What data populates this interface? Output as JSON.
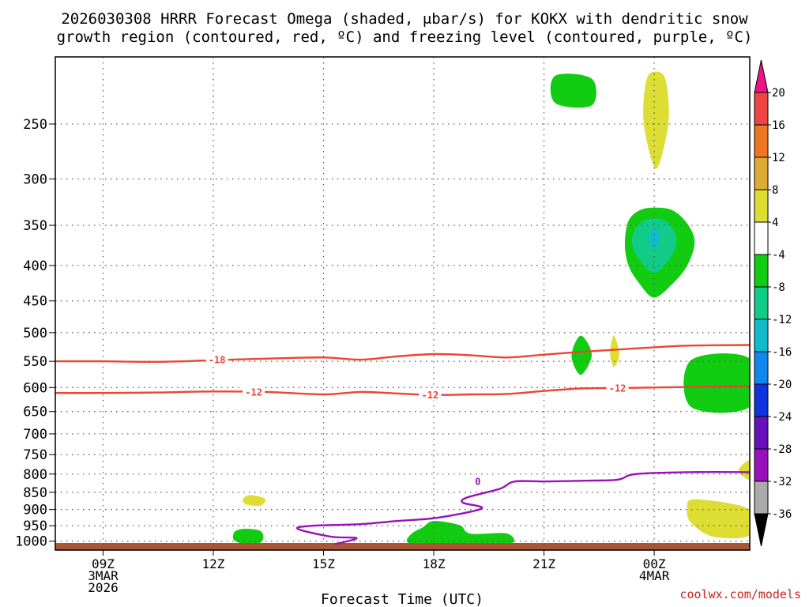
{
  "chart_data": {
    "type": "contour",
    "title_line1": "2026030308 HRRR Forecast Omega (shaded, μbar/s) for KOKX with dendritic snow",
    "title_line2": "growth region (contoured, red, ºC) and freezing level (contoured, purple, ºC)",
    "xlabel": "Forecast Time (UTC)",
    "credit": "coolwx.com/models",
    "x_domain_hours": [
      7.7,
      26.6
    ],
    "x_ticks": [
      {
        "hour": 9,
        "lines": [
          "09Z",
          "3MAR",
          "2026"
        ]
      },
      {
        "hour": 12,
        "lines": [
          "12Z"
        ]
      },
      {
        "hour": 15,
        "lines": [
          "15Z"
        ]
      },
      {
        "hour": 18,
        "lines": [
          "18Z"
        ]
      },
      {
        "hour": 21,
        "lines": [
          "21Z"
        ]
      },
      {
        "hour": 24,
        "lines": [
          "00Z",
          "4MAR"
        ]
      }
    ],
    "y_scale": "log-pressure",
    "y_domain_hpa": [
      1030,
      200
    ],
    "y_ticks": [
      250,
      300,
      350,
      400,
      450,
      500,
      550,
      600,
      650,
      700,
      750,
      800,
      850,
      900,
      950,
      1000
    ],
    "contours": [
      {
        "level": -18,
        "color": "#ee4433",
        "label": "-18",
        "points": [
          [
            7.7,
            550
          ],
          [
            9,
            550
          ],
          [
            10.5,
            551
          ],
          [
            12,
            548
          ],
          [
            13.5,
            545
          ],
          [
            15,
            543
          ],
          [
            16,
            547
          ],
          [
            17,
            541
          ],
          [
            18,
            537
          ],
          [
            19,
            539
          ],
          [
            20,
            543
          ],
          [
            21,
            538
          ],
          [
            22,
            533
          ],
          [
            23,
            529
          ],
          [
            24,
            525
          ],
          [
            25,
            522
          ],
          [
            26.6,
            521
          ]
        ],
        "labels": [
          [
            12.1,
            547
          ]
        ]
      },
      {
        "level": -12,
        "color": "#ee4433",
        "label": "-12",
        "points": [
          [
            7.7,
            611
          ],
          [
            9,
            611
          ],
          [
            10.5,
            610
          ],
          [
            12,
            608
          ],
          [
            13.5,
            609
          ],
          [
            15,
            614
          ],
          [
            16,
            609
          ],
          [
            17,
            612
          ],
          [
            18,
            615
          ],
          [
            19,
            614
          ],
          [
            20,
            613
          ],
          [
            21,
            607
          ],
          [
            22,
            602
          ],
          [
            23,
            601
          ],
          [
            24,
            600
          ],
          [
            25,
            599
          ],
          [
            26.6,
            597
          ]
        ],
        "labels": [
          [
            13.1,
            609
          ],
          [
            17.9,
            615
          ],
          [
            23.0,
            601
          ]
        ]
      },
      {
        "level": 0,
        "color": "#9911bb",
        "label": "0",
        "points": [
          [
            15.3,
            1010
          ],
          [
            15.9,
            990
          ],
          [
            15.2,
            985
          ],
          [
            14.3,
            960
          ],
          [
            14.7,
            950
          ],
          [
            16,
            945
          ],
          [
            17,
            935
          ],
          [
            18.1,
            925
          ],
          [
            19.3,
            897
          ],
          [
            18.8,
            880
          ],
          [
            18.9,
            865
          ],
          [
            19.8,
            840
          ],
          [
            20.2,
            820
          ],
          [
            21,
            820
          ],
          [
            22,
            818
          ],
          [
            23,
            815
          ],
          [
            23.5,
            800
          ],
          [
            25,
            795
          ],
          [
            26.6,
            795
          ]
        ],
        "labels": [
          [
            19.2,
            820
          ]
        ]
      }
    ],
    "shaded_regions": [
      {
        "range": "-8 to -4",
        "color": "#11cc11",
        "points": [
          [
            21.3,
            213
          ],
          [
            22.3,
            215
          ],
          [
            22.3,
            235
          ],
          [
            21.3,
            233
          ]
        ]
      },
      {
        "range": "4 to 8",
        "color": "#dddd33",
        "points": [
          [
            23.8,
            215
          ],
          [
            24.05,
            210
          ],
          [
            24.3,
            215
          ],
          [
            24.4,
            240
          ],
          [
            24.3,
            265
          ],
          [
            24.05,
            290
          ],
          [
            23.8,
            265
          ],
          [
            23.7,
            240
          ]
        ]
      },
      {
        "range": "-8 to -4",
        "color": "#11cc11",
        "points": [
          [
            24,
            330
          ],
          [
            24.5,
            333
          ],
          [
            24.9,
            348
          ],
          [
            25.1,
            370
          ],
          [
            24.9,
            400
          ],
          [
            24.5,
            425
          ],
          [
            24,
            445
          ],
          [
            23.6,
            425
          ],
          [
            23.3,
            400
          ],
          [
            23.2,
            372
          ],
          [
            23.3,
            345
          ],
          [
            23.6,
            333
          ]
        ]
      },
      {
        "range": "-12 to -8",
        "color": "#11cc88",
        "points": [
          [
            24,
            342
          ],
          [
            24.4,
            348
          ],
          [
            24.6,
            365
          ],
          [
            24.5,
            385
          ],
          [
            24,
            410
          ],
          [
            23.5,
            385
          ],
          [
            23.4,
            365
          ],
          [
            23.6,
            348
          ]
        ]
      },
      {
        "range": "-16 to -12",
        "color": "#11bbcc",
        "points": [
          [
            24,
            352
          ],
          [
            24.15,
            365
          ],
          [
            24,
            378
          ],
          [
            23.85,
            365
          ]
        ]
      },
      {
        "range": "-8 to -4",
        "color": "#11cc11",
        "points": [
          [
            22.0,
            505
          ],
          [
            22.3,
            538
          ],
          [
            22.0,
            575
          ],
          [
            21.75,
            540
          ]
        ]
      },
      {
        "range": "4 to 8",
        "color": "#dddd33",
        "points": [
          [
            22.9,
            505
          ],
          [
            23.05,
            538
          ],
          [
            22.9,
            560
          ],
          [
            22.8,
            535
          ]
        ]
      },
      {
        "range": "-8 to -4",
        "color": "#11cc11",
        "points": [
          [
            25.0,
            548
          ],
          [
            26.6,
            545
          ],
          [
            26.6,
            640
          ],
          [
            25.0,
            640
          ]
        ]
      },
      {
        "range": "4 to 8",
        "color": "#dddd33",
        "points": [
          [
            26.6,
            765
          ],
          [
            26.3,
            790
          ],
          [
            26.6,
            815
          ]
        ]
      },
      {
        "range": "4 to 8",
        "color": "#dddd33",
        "points": [
          [
            13.0,
            858
          ],
          [
            13.4,
            868
          ],
          [
            13.3,
            888
          ],
          [
            12.9,
            885
          ],
          [
            12.8,
            870
          ]
        ]
      },
      {
        "range": "4 to 8",
        "color": "#dddd33",
        "points": [
          [
            25.1,
            870
          ],
          [
            26.6,
            900
          ],
          [
            26.6,
            980
          ],
          [
            25.6,
            985
          ],
          [
            25.0,
            940
          ],
          [
            24.9,
            900
          ]
        ]
      },
      {
        "range": "-8 to -4",
        "color": "#11cc11",
        "points": [
          [
            13.0,
            960
          ],
          [
            13.3,
            968
          ],
          [
            13.35,
            995
          ],
          [
            13.1,
            1013
          ],
          [
            12.6,
            1000
          ],
          [
            12.55,
            975
          ],
          [
            12.7,
            962
          ]
        ]
      },
      {
        "range": "-8 to -4",
        "color": "#11cc11",
        "points": [
          [
            18,
            935
          ],
          [
            18.7,
            948
          ],
          [
            19,
            975
          ],
          [
            20,
            975
          ],
          [
            20,
            1012
          ],
          [
            18,
            1015
          ],
          [
            17.3,
            1005
          ],
          [
            17.4,
            975
          ],
          [
            17.7,
            955
          ]
        ]
      }
    ],
    "ground_color": "#aa5533",
    "colorbar": {
      "colors": [
        "#ee1188",
        "#ee4444",
        "#ee7722",
        "#ddaa33",
        "#dddd33",
        "#ffffff",
        "#11cc11",
        "#11cc88",
        "#11bbcc",
        "#1188ee",
        "#1133dd",
        "#6611bb",
        "#9911bb",
        "#aaaaaa",
        "#000000"
      ],
      "labels": [
        "20",
        "16",
        "12",
        "8",
        "4",
        "-4",
        "-8",
        "-12",
        "-16",
        "-20",
        "-24",
        "-28",
        "-32",
        "-36"
      ]
    }
  }
}
